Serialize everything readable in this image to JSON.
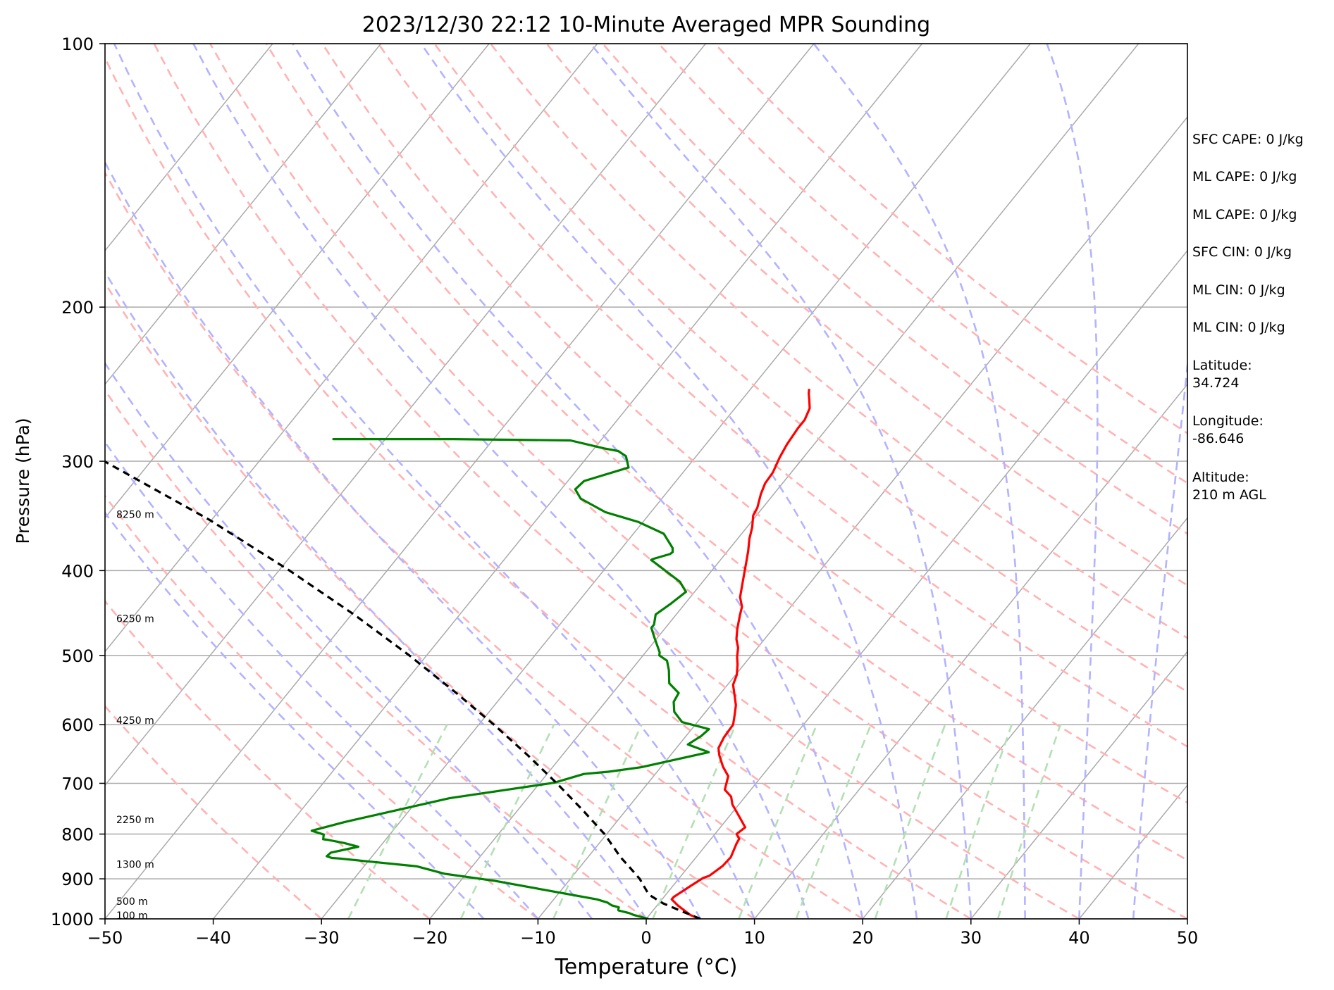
{
  "chart_data": {
    "type": "line",
    "title": "2023/12/30 22:12 10-Minute Averaged MPR Sounding",
    "xlabel": "Temperature (°C)",
    "ylabel": "Pressure (hPa)",
    "xlim": [
      -50,
      50
    ],
    "ylim": [
      1000,
      100
    ],
    "yscale": "log",
    "x_ticks": [
      -50,
      -40,
      -30,
      -20,
      -10,
      0,
      10,
      20,
      30,
      40,
      50
    ],
    "x_tick_labels": [
      "−50",
      "−40",
      "−30",
      "−20",
      "−10",
      "0",
      "10",
      "20",
      "30",
      "40",
      "50"
    ],
    "y_ticks": [
      100,
      200,
      300,
      400,
      500,
      600,
      700,
      800,
      900,
      1000
    ],
    "y_tick_labels": [
      "100",
      "200",
      "300",
      "400",
      "500",
      "600",
      "700",
      "800",
      "900",
      "1000"
    ],
    "grid": true,
    "colors": {
      "temperature": "#ff0000",
      "dewpoint": "#008000",
      "parcel": "#000000",
      "dry_adiabats": "#ffb3b3",
      "moist_adiabats": "#b3b3ff",
      "mixing_ratio": "#b3e0b3",
      "isotherms": "#aaaaaa"
    },
    "series": [
      {
        "role": "temperature",
        "points": [
          [
            5.0,
            1000
          ],
          [
            3.8,
            990
          ],
          [
            1.9,
            965
          ],
          [
            0.9,
            950
          ],
          [
            0.9,
            944
          ],
          [
            1.7,
            915
          ],
          [
            2.2,
            898
          ],
          [
            2.6,
            893
          ],
          [
            3.1,
            870
          ],
          [
            3.2,
            850
          ],
          [
            3.0,
            838
          ],
          [
            2.7,
            820
          ],
          [
            2.6,
            810
          ],
          [
            2.0,
            800
          ],
          [
            2.3,
            786
          ],
          [
            1.0,
            765
          ],
          [
            -0.6,
            740
          ],
          [
            -1.3,
            725
          ],
          [
            -2.4,
            712
          ],
          [
            -3.1,
            687
          ],
          [
            -4.3,
            670
          ],
          [
            -5.5,
            650
          ],
          [
            -6.1,
            638
          ],
          [
            -6.4,
            620
          ],
          [
            -6.5,
            600
          ],
          [
            -7.0,
            587
          ],
          [
            -7.7,
            570
          ],
          [
            -9.5,
            540
          ],
          [
            -9.9,
            526
          ],
          [
            -10.6,
            512
          ],
          [
            -11.2,
            502
          ],
          [
            -11.8,
            490
          ],
          [
            -12.6,
            479
          ],
          [
            -13.3,
            466
          ],
          [
            -14.1,
            449
          ],
          [
            -14.5,
            440
          ],
          [
            -15.4,
            429
          ],
          [
            -16.3,
            412
          ],
          [
            -16.9,
            401
          ],
          [
            -17.4,
            392
          ],
          [
            -18.1,
            380
          ],
          [
            -18.9,
            368
          ],
          [
            -19.5,
            357
          ],
          [
            -20.3,
            346
          ],
          [
            -20.5,
            339
          ],
          [
            -21.2,
            327
          ],
          [
            -21.6,
            318
          ],
          [
            -21.7,
            309
          ],
          [
            -22.2,
            297
          ],
          [
            -22.5,
            287
          ],
          [
            -22.7,
            275
          ],
          [
            -22.7,
            269
          ],
          [
            -23.1,
            261
          ],
          [
            -23.8,
            255
          ],
          [
            -24.3,
            251
          ],
          [
            -24.6,
            248
          ]
        ]
      },
      {
        "role": "dewpoint",
        "points": [
          [
            0.2,
            1000
          ],
          [
            -1.4,
            990
          ],
          [
            -2.0,
            985
          ],
          [
            -3.2,
            978
          ],
          [
            -3.3,
            975
          ],
          [
            -3.4,
            970
          ],
          [
            -4.2,
            965
          ],
          [
            -4.8,
            958
          ],
          [
            -6.0,
            950
          ],
          [
            -16.8,
            905
          ],
          [
            -22.0,
            888
          ],
          [
            -25.1,
            871
          ],
          [
            -32.9,
            853
          ],
          [
            -33.6,
            852
          ],
          [
            -34.2,
            848
          ],
          [
            -34.1,
            840
          ],
          [
            -32.0,
            827
          ],
          [
            -33.6,
            819
          ],
          [
            -35.4,
            812
          ],
          [
            -35.8,
            811
          ],
          [
            -36.1,
            801
          ],
          [
            -37.5,
            793
          ],
          [
            -35.1,
            775
          ],
          [
            -27.2,
            728
          ],
          [
            -18.7,
            699
          ],
          [
            -16.6,
            683
          ],
          [
            -14.5,
            679
          ],
          [
            -11.8,
            671
          ],
          [
            -6.7,
            645
          ],
          [
            -9.2,
            632
          ],
          [
            -8.6,
            618
          ],
          [
            -8.4,
            607
          ],
          [
            -11.4,
            596
          ],
          [
            -12.9,
            580
          ],
          [
            -13.7,
            565
          ],
          [
            -13.9,
            552
          ],
          [
            -15.5,
            538
          ],
          [
            -16.5,
            520
          ],
          [
            -17.4,
            507
          ],
          [
            -18.5,
            500
          ],
          [
            -18.7,
            496
          ],
          [
            -20.3,
            477
          ],
          [
            -21.3,
            465
          ],
          [
            -21.3,
            461
          ],
          [
            -21.9,
            449
          ],
          [
            -21.3,
            436
          ],
          [
            -20.8,
            423
          ],
          [
            -22.1,
            412
          ],
          [
            -25.8,
            392
          ],
          [
            -26.4,
            389
          ],
          [
            -26.3,
            388
          ],
          [
            -25.1,
            383
          ],
          [
            -25.0,
            381
          ],
          [
            -25.3,
            377
          ],
          [
            -27.2,
            363
          ],
          [
            -30.4,
            352
          ],
          [
            -34.2,
            343
          ],
          [
            -37.5,
            331
          ],
          [
            -38.7,
            323
          ],
          [
            -38.5,
            316
          ],
          [
            -35.4,
            305
          ],
          [
            -36.5,
            296
          ],
          [
            -37.6,
            292
          ],
          [
            -39.1,
            290
          ],
          [
            -42.8,
            284
          ],
          [
            -53.7,
            283
          ],
          [
            -64.8,
            283
          ],
          [
            -64.4,
            283
          ]
        ]
      },
      {
        "role": "parcel",
        "points": [
          [
            5.0,
            1000
          ],
          [
            2.7,
            980
          ],
          [
            0.4,
            960
          ],
          [
            -1.4,
            940
          ],
          [
            -2.0,
            930
          ],
          [
            -3.6,
            900
          ],
          [
            -5.6,
            870
          ],
          [
            -7.0,
            850
          ],
          [
            -10.2,
            800
          ],
          [
            -14.1,
            750
          ],
          [
            -18.4,
            700
          ],
          [
            -23.2,
            650
          ],
          [
            -28.6,
            600
          ],
          [
            -34.7,
            550
          ],
          [
            -41.6,
            500
          ],
          [
            -49.6,
            450
          ],
          [
            -59.0,
            400
          ],
          [
            -70.2,
            350
          ],
          [
            -84.3,
            300
          ],
          [
            -103.1,
            250
          ]
        ]
      }
    ],
    "isotherms": [
      -100,
      -90,
      -80,
      -70,
      -60,
      -50,
      -40,
      -30,
      -20,
      -10,
      0,
      10,
      20,
      30,
      40,
      50
    ],
    "dry_adiabats_theta_c": [
      -30,
      -20,
      -10,
      0,
      10,
      20,
      30,
      40,
      50,
      60,
      70,
      80,
      90,
      100,
      110,
      120,
      130,
      140
    ],
    "moist_adiabats_t1000_c": [
      -15,
      -10,
      -5,
      0,
      5,
      10,
      15,
      20,
      25,
      30,
      35,
      40,
      45
    ],
    "mixing_ratio_gkg": [
      0.4,
      1,
      2,
      4,
      7,
      10,
      16,
      24,
      32
    ],
    "height_labels": [
      {
        "text": "100 m",
        "p": 991
      },
      {
        "text": "500 m",
        "p": 955
      },
      {
        "text": "1300 m",
        "p": 866
      },
      {
        "text": "2250 m",
        "p": 770
      },
      {
        "text": "4250 m",
        "p": 593
      },
      {
        "text": "6250 m",
        "p": 454
      },
      {
        "text": "8250 m",
        "p": 345
      }
    ]
  },
  "side_panel": {
    "stats": [
      "SFC CAPE: 0 J/kg",
      "ML CAPE: 0 J/kg",
      "ML CAPE: 0 J/kg",
      "SFC CIN: 0 J/kg",
      "ML CIN: 0 J/kg",
      "ML CIN: 0 J/kg"
    ],
    "latitude_label": "Latitude:",
    "latitude_value": "34.724",
    "longitude_label": "Longitude:",
    "longitude_value": "-86.646",
    "altitude_label": "Altitude:",
    "altitude_value": "210 m AGL"
  }
}
